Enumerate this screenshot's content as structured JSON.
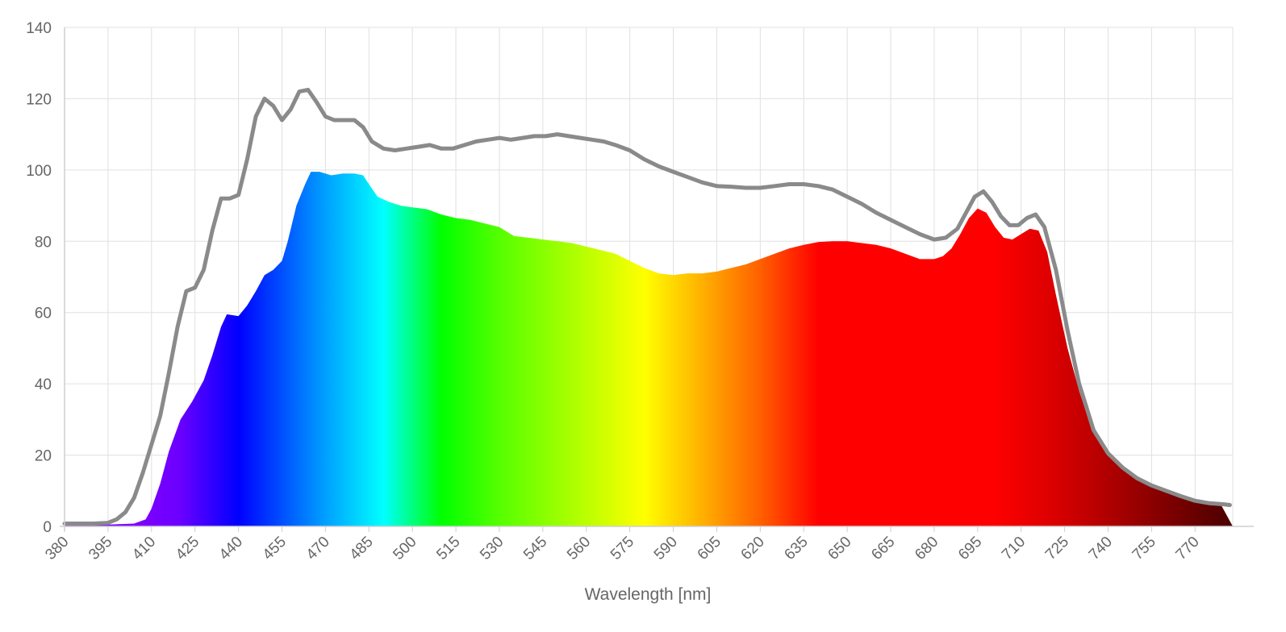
{
  "chart_data": {
    "type": "area",
    "title": "",
    "xlabel": "Wavelength [nm]",
    "ylabel": "",
    "xlim": [
      380,
      783
    ],
    "ylim": [
      0,
      140
    ],
    "grid": true,
    "legend": "none",
    "x_ticks": [
      380,
      395,
      410,
      425,
      440,
      455,
      470,
      485,
      500,
      515,
      530,
      545,
      560,
      575,
      590,
      605,
      620,
      635,
      650,
      665,
      680,
      695,
      710,
      725,
      740,
      755,
      770
    ],
    "y_ticks": [
      0,
      20,
      40,
      60,
      80,
      100,
      120,
      140
    ],
    "series": [
      {
        "style": "spectrum-fill",
        "points": [
          [
            380,
            0.5
          ],
          [
            395,
            0.5
          ],
          [
            404,
            0.8
          ],
          [
            408,
            2
          ],
          [
            410,
            5
          ],
          [
            413,
            12
          ],
          [
            416,
            21
          ],
          [
            420,
            30
          ],
          [
            424,
            35
          ],
          [
            428,
            41
          ],
          [
            431,
            48
          ],
          [
            434,
            56
          ],
          [
            436,
            59.5
          ],
          [
            440,
            59
          ],
          [
            443,
            62
          ],
          [
            446,
            66
          ],
          [
            449,
            70.5
          ],
          [
            452,
            72
          ],
          [
            455,
            74.5
          ],
          [
            457,
            80
          ],
          [
            460,
            90
          ],
          [
            463,
            96
          ],
          [
            465,
            99.5
          ],
          [
            468,
            99.5
          ],
          [
            472,
            98.5
          ],
          [
            476,
            99
          ],
          [
            480,
            99
          ],
          [
            483,
            98.5
          ],
          [
            485,
            96
          ],
          [
            488,
            92.5
          ],
          [
            492,
            91
          ],
          [
            496,
            90
          ],
          [
            500,
            89.5
          ],
          [
            505,
            89
          ],
          [
            510,
            87.5
          ],
          [
            515,
            86.5
          ],
          [
            520,
            86
          ],
          [
            525,
            85
          ],
          [
            530,
            84
          ],
          [
            535,
            81.5
          ],
          [
            540,
            81
          ],
          [
            545,
            80.5
          ],
          [
            550,
            80
          ],
          [
            555,
            79.5
          ],
          [
            560,
            78.5
          ],
          [
            565,
            77.5
          ],
          [
            570,
            76.5
          ],
          [
            575,
            74.5
          ],
          [
            580,
            72.5
          ],
          [
            585,
            71
          ],
          [
            590,
            70.5
          ],
          [
            595,
            71
          ],
          [
            600,
            71
          ],
          [
            605,
            71.5
          ],
          [
            610,
            72.5
          ],
          [
            615,
            73.5
          ],
          [
            620,
            75
          ],
          [
            625,
            76.5
          ],
          [
            630,
            78
          ],
          [
            635,
            79
          ],
          [
            640,
            79.8
          ],
          [
            645,
            80
          ],
          [
            650,
            80
          ],
          [
            655,
            79.5
          ],
          [
            660,
            79
          ],
          [
            665,
            78
          ],
          [
            670,
            76.5
          ],
          [
            675,
            75
          ],
          [
            680,
            75
          ],
          [
            683,
            75.8
          ],
          [
            686,
            78
          ],
          [
            689,
            82
          ],
          [
            692,
            86.5
          ],
          [
            695,
            89.2
          ],
          [
            698,
            88
          ],
          [
            701,
            84
          ],
          [
            704,
            81
          ],
          [
            707,
            80.5
          ],
          [
            710,
            82
          ],
          [
            713,
            83.5
          ],
          [
            716,
            83
          ],
          [
            719,
            77
          ],
          [
            722,
            65
          ],
          [
            726,
            50
          ],
          [
            730,
            38
          ],
          [
            735,
            26
          ],
          [
            740,
            20
          ],
          [
            745,
            16.5
          ],
          [
            750,
            13.5
          ],
          [
            755,
            11.5
          ],
          [
            760,
            10
          ],
          [
            765,
            8.5
          ],
          [
            770,
            7.2
          ],
          [
            775,
            6.5
          ],
          [
            779,
            6
          ],
          [
            781,
            3
          ],
          [
            783,
            0
          ]
        ]
      },
      {
        "style": "gray-line",
        "color": "#8a8a8a",
        "points": [
          [
            380,
            0.8
          ],
          [
            390,
            0.8
          ],
          [
            395,
            1
          ],
          [
            398,
            2
          ],
          [
            401,
            4
          ],
          [
            404,
            8
          ],
          [
            407,
            15
          ],
          [
            410,
            23
          ],
          [
            413,
            31
          ],
          [
            416,
            43
          ],
          [
            419,
            56
          ],
          [
            422,
            66
          ],
          [
            425,
            67
          ],
          [
            428,
            72
          ],
          [
            431,
            83
          ],
          [
            434,
            92
          ],
          [
            437,
            92
          ],
          [
            440,
            93
          ],
          [
            443,
            103
          ],
          [
            446,
            115
          ],
          [
            449,
            120
          ],
          [
            452,
            118
          ],
          [
            455,
            114
          ],
          [
            458,
            117
          ],
          [
            461,
            122
          ],
          [
            464,
            122.5
          ],
          [
            467,
            119
          ],
          [
            470,
            115
          ],
          [
            473,
            114
          ],
          [
            476,
            114
          ],
          [
            480,
            114
          ],
          [
            483,
            112
          ],
          [
            486,
            108
          ],
          [
            490,
            106
          ],
          [
            494,
            105.5
          ],
          [
            498,
            106
          ],
          [
            502,
            106.5
          ],
          [
            506,
            107
          ],
          [
            510,
            106
          ],
          [
            514,
            106
          ],
          [
            518,
            107
          ],
          [
            522,
            108
          ],
          [
            526,
            108.5
          ],
          [
            530,
            109
          ],
          [
            534,
            108.5
          ],
          [
            538,
            109
          ],
          [
            542,
            109.5
          ],
          [
            546,
            109.5
          ],
          [
            550,
            110
          ],
          [
            554,
            109.5
          ],
          [
            558,
            109
          ],
          [
            562,
            108.5
          ],
          [
            566,
            108
          ],
          [
            570,
            107
          ],
          [
            575,
            105.5
          ],
          [
            580,
            103
          ],
          [
            585,
            101
          ],
          [
            590,
            99.5
          ],
          [
            595,
            98
          ],
          [
            600,
            96.5
          ],
          [
            605,
            95.5
          ],
          [
            610,
            95.3
          ],
          [
            615,
            95
          ],
          [
            620,
            95
          ],
          [
            625,
            95.5
          ],
          [
            630,
            96
          ],
          [
            635,
            96
          ],
          [
            640,
            95.5
          ],
          [
            645,
            94.5
          ],
          [
            650,
            92.5
          ],
          [
            655,
            90.5
          ],
          [
            660,
            88
          ],
          [
            665,
            86
          ],
          [
            670,
            84
          ],
          [
            675,
            82
          ],
          [
            680,
            80.5
          ],
          [
            684,
            81
          ],
          [
            688,
            83.5
          ],
          [
            691,
            88
          ],
          [
            694,
            92.5
          ],
          [
            697,
            94
          ],
          [
            700,
            91
          ],
          [
            703,
            87
          ],
          [
            706,
            84.5
          ],
          [
            709,
            84.5
          ],
          [
            712,
            86.5
          ],
          [
            715,
            87.5
          ],
          [
            718,
            84
          ],
          [
            722,
            72
          ],
          [
            726,
            55
          ],
          [
            730,
            40
          ],
          [
            735,
            27
          ],
          [
            740,
            20.5
          ],
          [
            745,
            16.5
          ],
          [
            750,
            13.5
          ],
          [
            755,
            11.5
          ],
          [
            760,
            10
          ],
          [
            765,
            8.5
          ],
          [
            770,
            7.2
          ],
          [
            775,
            6.5
          ],
          [
            780,
            6.2
          ],
          [
            782,
            6
          ]
        ]
      }
    ]
  }
}
